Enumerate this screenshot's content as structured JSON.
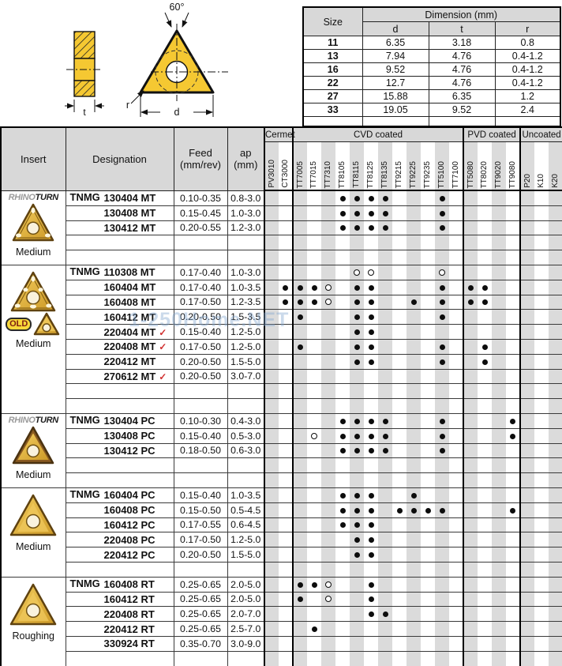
{
  "watermark": "1-250Home.NET",
  "diagrams": {
    "angle_label": "60°",
    "thickness_label": "t",
    "diameter_label": "d",
    "radius_label": "r"
  },
  "size_table": {
    "size_header": "Size",
    "dimension_header": "Dimension (mm)",
    "columns": [
      "d",
      "t",
      "r"
    ],
    "rows": [
      {
        "size": "11",
        "d": "6.35",
        "t": "3.18",
        "r": "0.8"
      },
      {
        "size": "13",
        "d": "7.94",
        "t": "4.76",
        "r": "0.4-1.2"
      },
      {
        "size": "16",
        "d": "9.52",
        "t": "4.76",
        "r": "0.4-1.2"
      },
      {
        "size": "22",
        "d": "12.7",
        "t": "4.76",
        "r": "0.4-1.2"
      },
      {
        "size": "27",
        "d": "15.88",
        "t": "6.35",
        "r": "1.2"
      },
      {
        "size": "33",
        "d": "19.05",
        "t": "9.52",
        "r": "2.4"
      }
    ]
  },
  "main_table": {
    "headers": {
      "insert": "Insert",
      "designation": "Designation",
      "feed_line1": "Feed",
      "feed_line2": "(mm/rev)",
      "ap_line1": "ap",
      "ap_line2": "(mm)"
    },
    "sections": [
      {
        "label": "Cermet",
        "cols": [
          "PV3010",
          "CT3000"
        ]
      },
      {
        "label": "CVD coated",
        "cols": [
          "TT7005",
          "TT7015",
          "TT7310",
          "TT8105",
          "TT8115",
          "TT8125",
          "TT8135",
          "TT9215",
          "TT9225",
          "TT9235",
          "TT5100",
          "TT7100"
        ]
      },
      {
        "label": "PVD coated",
        "cols": [
          "TT5080",
          "TT8020",
          "TT9020",
          "TT9080"
        ]
      },
      {
        "label": "Uncoated",
        "cols": [
          "P20",
          "K10",
          "K20"
        ]
      }
    ],
    "groups": [
      {
        "logo": {
          "outline": "RHINO",
          "solid": "TURN"
        },
        "old_label": null,
        "insert_style": "chip",
        "insert_label": "Medium",
        "filler_rows": 2,
        "rows": [
          {
            "prefix": "TNMG",
            "name": "130404 MT",
            "check": false,
            "feed": "0.10-0.35",
            "ap": "0.8-3.0",
            "marks": {
              "TT8105": "filled",
              "TT8115": "filled",
              "TT8125": "filled",
              "TT8135": "filled",
              "TT5100": "filled"
            }
          },
          {
            "prefix": "",
            "name": "130408 MT",
            "check": false,
            "feed": "0.15-0.45",
            "ap": "1.0-3.0",
            "marks": {
              "TT8105": "filled",
              "TT8115": "filled",
              "TT8125": "filled",
              "TT8135": "filled",
              "TT5100": "filled"
            }
          },
          {
            "prefix": "",
            "name": "130412 MT",
            "check": false,
            "feed": "0.20-0.55",
            "ap": "1.2-3.0",
            "marks": {
              "TT8105": "filled",
              "TT8115": "filled",
              "TT8125": "filled",
              "TT8135": "filled",
              "TT5100": "filled"
            }
          }
        ]
      },
      {
        "logo": null,
        "old_label": "OLD",
        "insert_style": "big",
        "insert_label": "Medium",
        "filler_rows": 2,
        "rows": [
          {
            "prefix": "TNMG",
            "name": "110308 MT",
            "check": false,
            "feed": "0.17-0.40",
            "ap": "1.0-3.0",
            "marks": {
              "TT8115": "hollow",
              "TT8125": "hollow",
              "TT5100": "hollow"
            }
          },
          {
            "prefix": "",
            "name": "160404 MT",
            "check": false,
            "feed": "0.17-0.40",
            "ap": "1.0-3.5",
            "marks": {
              "CT3000": "filled",
              "TT7005": "filled",
              "TT7015": "filled",
              "TT7310": "hollow",
              "TT8115": "filled",
              "TT8125": "filled",
              "TT5100": "filled",
              "TT5080": "filled",
              "TT8020": "filled"
            }
          },
          {
            "prefix": "",
            "name": "160408 MT",
            "check": false,
            "feed": "0.17-0.50",
            "ap": "1.2-3.5",
            "marks": {
              "CT3000": "filled",
              "TT7005": "filled",
              "TT7015": "filled",
              "TT7310": "hollow",
              "TT8115": "filled",
              "TT8125": "filled",
              "TT9225": "filled",
              "TT5100": "filled",
              "TT5080": "filled",
              "TT8020": "filled"
            }
          },
          {
            "prefix": "",
            "name": "160412 MT",
            "check": false,
            "feed": "0.20-0.50",
            "ap": "1.5-3.5",
            "marks": {
              "TT7005": "filled",
              "TT8115": "filled",
              "TT8125": "filled",
              "TT5100": "filled"
            }
          },
          {
            "prefix": "",
            "name": "220404 MT",
            "check": true,
            "feed": "0.15-0.40",
            "ap": "1.2-5.0",
            "marks": {
              "TT8115": "filled",
              "TT8125": "filled"
            }
          },
          {
            "prefix": "",
            "name": "220408 MT",
            "check": true,
            "feed": "0.17-0.50",
            "ap": "1.2-5.0",
            "marks": {
              "TT7005": "filled",
              "TT8115": "filled",
              "TT8125": "filled",
              "TT5100": "filled",
              "TT8020": "filled"
            }
          },
          {
            "prefix": "",
            "name": "220412 MT",
            "check": false,
            "feed": "0.20-0.50",
            "ap": "1.5-5.0",
            "marks": {
              "TT8115": "filled",
              "TT8125": "filled",
              "TT5100": "filled",
              "TT8020": "filled"
            }
          },
          {
            "prefix": "",
            "name": "270612 MT",
            "check": true,
            "feed": "0.20-0.50",
            "ap": "3.0-7.0",
            "marks": {}
          }
        ]
      },
      {
        "logo": {
          "outline": "RHINO",
          "solid": "TURN"
        },
        "old_label": null,
        "insert_style": "pc",
        "insert_label": "Medium",
        "filler_rows": 2,
        "rows": [
          {
            "prefix": "TNMG",
            "name": "130404 PC",
            "check": false,
            "feed": "0.10-0.30",
            "ap": "0.4-3.0",
            "marks": {
              "TT8105": "filled",
              "TT8115": "filled",
              "TT8125": "filled",
              "TT8135": "filled",
              "TT5100": "filled",
              "TT9080": "filled"
            }
          },
          {
            "prefix": "",
            "name": "130408 PC",
            "check": false,
            "feed": "0.15-0.40",
            "ap": "0.5-3.0",
            "marks": {
              "TT7015": "hollow",
              "TT8105": "filled",
              "TT8115": "filled",
              "TT8125": "filled",
              "TT8135": "filled",
              "TT5100": "filled",
              "TT9080": "filled"
            }
          },
          {
            "prefix": "",
            "name": "130412 PC",
            "check": false,
            "feed": "0.18-0.50",
            "ap": "0.6-3.0",
            "marks": {
              "TT8105": "filled",
              "TT8115": "filled",
              "TT8125": "filled",
              "TT8135": "filled",
              "TT5100": "filled"
            }
          }
        ]
      },
      {
        "logo": null,
        "old_label": null,
        "insert_style": "plain",
        "insert_label": "Medium",
        "filler_rows": 1,
        "rows": [
          {
            "prefix": "TNMG",
            "name": "160404 PC",
            "check": false,
            "feed": "0.15-0.40",
            "ap": "1.0-3.5",
            "marks": {
              "TT8105": "filled",
              "TT8115": "filled",
              "TT8125": "filled",
              "TT9225": "filled"
            }
          },
          {
            "prefix": "",
            "name": "160408 PC",
            "check": false,
            "feed": "0.15-0.50",
            "ap": "0.5-4.5",
            "marks": {
              "TT8105": "filled",
              "TT8115": "filled",
              "TT8125": "filled",
              "TT9215": "filled",
              "TT9225": "filled",
              "TT9235": "filled",
              "TT5100": "filled",
              "TT9080": "filled"
            }
          },
          {
            "prefix": "",
            "name": "160412 PC",
            "check": false,
            "feed": "0.17-0.55",
            "ap": "0.6-4.5",
            "marks": {
              "TT8105": "filled",
              "TT8115": "filled",
              "TT8125": "filled"
            }
          },
          {
            "prefix": "",
            "name": "220408 PC",
            "check": false,
            "feed": "0.17-0.50",
            "ap": "1.2-5.0",
            "marks": {
              "TT8115": "filled",
              "TT8125": "filled"
            }
          },
          {
            "prefix": "",
            "name": "220412 PC",
            "check": false,
            "feed": "0.20-0.50",
            "ap": "1.5-5.0",
            "marks": {
              "TT8115": "filled",
              "TT8125": "filled"
            }
          }
        ]
      },
      {
        "logo": null,
        "old_label": null,
        "insert_style": "plain",
        "insert_label": "Roughing",
        "filler_rows": 1,
        "rows": [
          {
            "prefix": "TNMG",
            "name": "160408 RT",
            "check": false,
            "feed": "0.25-0.65",
            "ap": "2.0-5.0",
            "marks": {
              "TT7005": "filled",
              "TT7015": "filled",
              "TT7310": "hollow",
              "TT8125": "filled"
            }
          },
          {
            "prefix": "",
            "name": "160412 RT",
            "check": false,
            "feed": "0.25-0.65",
            "ap": "2.0-5.0",
            "marks": {
              "TT7005": "filled",
              "TT7310": "hollow",
              "TT8125": "filled"
            }
          },
          {
            "prefix": "",
            "name": "220408 RT",
            "check": false,
            "feed": "0.25-0.65",
            "ap": "2.0-7.0",
            "marks": {
              "TT8125": "filled",
              "TT8135": "filled"
            }
          },
          {
            "prefix": "",
            "name": "220412 RT",
            "check": false,
            "feed": "0.25-0.65",
            "ap": "2.5-7.0",
            "marks": {
              "TT7015": "filled"
            }
          },
          {
            "prefix": "",
            "name": "330924 RT",
            "check": false,
            "feed": "0.35-0.70",
            "ap": "3.0-9.0",
            "marks": {}
          }
        ]
      }
    ]
  },
  "colors": {
    "stripe_gray": "#dbdbdb",
    "header_gray": "#d8d8d8",
    "insert_gold": "#f5c832",
    "badge_yellow": "#f8d83a",
    "check_red": "#d03030",
    "mark_black": "#0d0d0d"
  }
}
